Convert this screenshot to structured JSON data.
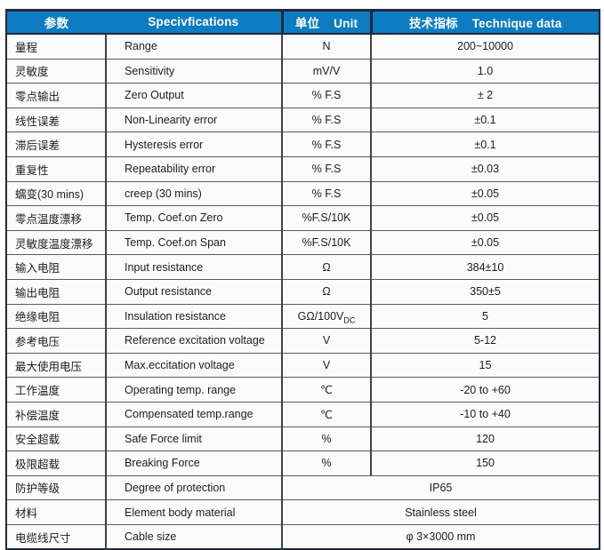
{
  "table": {
    "title_semantic": "force-sensor-specifications-table",
    "colors": {
      "header_bg": "#0e7cc2",
      "header_text": "#ffffff",
      "frame_border": "#202839",
      "grid_line": "#5c5c5c",
      "cell_bg": "#fbfbfb",
      "body_text": "#1c1c1c"
    },
    "header": {
      "param_cn": "参数",
      "spec_en": "Specivfications",
      "unit_cn": "单位",
      "unit_en": "Unit",
      "data_cn": "技术指标",
      "data_en": "Technique data"
    },
    "rows": [
      {
        "cn": "量程",
        "en": "Range",
        "unit": "N",
        "value": "200~10000"
      },
      {
        "cn": "灵敏度",
        "en": "Sensitivity",
        "unit": "mV/V",
        "value": "1.0"
      },
      {
        "cn": "零点输出",
        "en": "Zero Output",
        "unit": "% F.S",
        "value": "± 2"
      },
      {
        "cn": "线性误差",
        "en": "Non-Linearity error",
        "unit": "% F.S",
        "value": "±0.1"
      },
      {
        "cn": "滞后误差",
        "en": "Hysteresis error",
        "unit": "% F.S",
        "value": "±0.1"
      },
      {
        "cn": "重复性",
        "en": "Repeatability error",
        "unit": "% F.S",
        "value": "±0.03"
      },
      {
        "cn": "蠕变(30 mins)",
        "en": "creep (30 mins)",
        "unit": "% F.S",
        "value": "±0.05"
      },
      {
        "cn": "零点温度漂移",
        "en": "Temp. Coef.on Zero",
        "unit": "%F.S/10K",
        "value": "±0.05"
      },
      {
        "cn": "灵敏度温度漂移",
        "en": "Temp. Coef.on Span",
        "unit": "%F.S/10K",
        "value": "±0.05"
      },
      {
        "cn": "输入电阻",
        "en": "Input resistance",
        "unit": "Ω",
        "value": "384±10"
      },
      {
        "cn": "输出电阻",
        "en": "Output resistance",
        "unit": "Ω",
        "value": "350±5"
      },
      {
        "cn": "绝缘电阻",
        "en": "Insulation resistance",
        "unit": "GΩ/100V",
        "unit_sub": "DC",
        "value": "5"
      },
      {
        "cn": "参考电压",
        "en": "Reference excitation voltage",
        "unit": "V",
        "value": "5-12"
      },
      {
        "cn": "最大使用电压",
        "en": "Max.eccitation voltage",
        "unit": "V",
        "value": "15"
      },
      {
        "cn": "工作温度",
        "en": "Operating temp. range",
        "unit": "℃",
        "value": "-20 to +60"
      },
      {
        "cn": "补偿温度",
        "en": "Compensated temp.range",
        "unit": "℃",
        "value": "-10 to +40"
      },
      {
        "cn": "安全超载",
        "en": "Safe Force limit",
        "unit": "%",
        "value": "120"
      },
      {
        "cn": "极限超载",
        "en": "Breaking Force",
        "unit": "%",
        "value": "150"
      },
      {
        "cn": "防护等级",
        "en": "Degree of protection",
        "merged": true,
        "value": "IP65"
      },
      {
        "cn": "材料",
        "en": "Element body material",
        "merged": true,
        "value": "Stainless steel"
      },
      {
        "cn": "电缆线尺寸",
        "en": "Cable size",
        "merged": true,
        "value": "φ 3×3000 mm"
      }
    ]
  }
}
